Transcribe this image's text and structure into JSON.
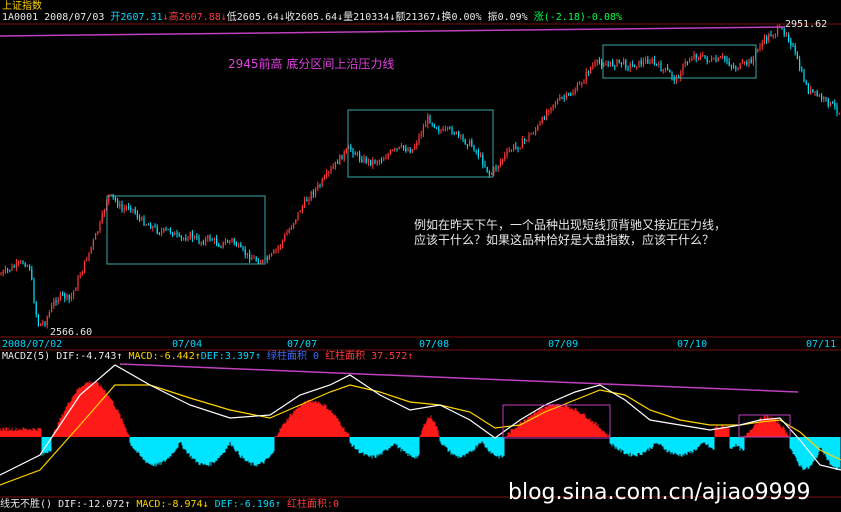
{
  "window": {
    "title": "上证指数",
    "code": "1A0001",
    "date": "2008/07/03"
  },
  "quote": {
    "open_label": "开",
    "open": "2607.31",
    "high_label": "高",
    "high": "2607.88",
    "low_label": "低",
    "low": "2605.64",
    "close_label": "收",
    "close": "2605.64",
    "volume_label": "量",
    "volume": "210334",
    "amount_label": "额",
    "amount": "21367",
    "turnover_label": "换",
    "turnover": "0.00%",
    "amplitude_label": "振",
    "amplitude": "0.09%",
    "change_label": "涨",
    "change": "(-2.18)-0.08%"
  },
  "annotations": {
    "resistance_note": "2945前高  底分区间上沿压力线",
    "question_line1": "例如在昨天下午，一个品种出现短线顶背驰又接近压力线，",
    "question_line2": "应该干什么？如果这品种恰好是大盘指数，应该干什么？",
    "high_price": "2951.62",
    "low_price": "2566.60"
  },
  "x_axis": {
    "labels": [
      "2008/07/02",
      "07/04",
      "07/07",
      "07/08",
      "07/09",
      "07/10",
      "07/11"
    ]
  },
  "macd_panel": {
    "title": "MACDZ(5)",
    "dif": "DIF:-4.743",
    "dif_arrow": "↑",
    "macd": "MACD:-6.442",
    "macd_arrow": "↑",
    "def": "DEF:3.397",
    "def_arrow": "↑",
    "green_area": "绿柱面积 0",
    "red_area": "红柱面积 37.572",
    "red_arrow": "↑"
  },
  "bottom_panel": {
    "title": "线无不胜()",
    "dif": "DIF:-12.072",
    "dif_arrow": "↑",
    "macd": "MACD:-8.974",
    "macd_arrow": "↓",
    "def": "DEF:-6.196",
    "def_arrow": "↑",
    "red_area": "红柱面积:0"
  },
  "watermark": "blog.sina.com.cn/ajiao9999",
  "colors": {
    "background": "#000000",
    "up_candle": "#ff3b3b",
    "down_candle": "#00e5ff",
    "box_border": "#3aa8a8",
    "resistance_line": "#c040c0",
    "dif_line": "#ffffff",
    "dea_line": "#ffd400",
    "red_bar": "#ff1a1a",
    "cyan_bar": "#00e5ff"
  }
}
